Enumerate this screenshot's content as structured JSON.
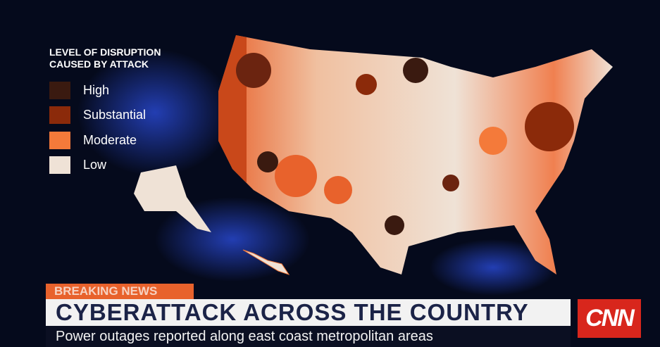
{
  "legend": {
    "title": "LEVEL OF DISRUPTION\nCAUSED BY ATTACK",
    "items": [
      {
        "label": "High"
      },
      {
        "label": "Substantial"
      },
      {
        "label": "Moderate"
      },
      {
        "label": "Low"
      }
    ]
  },
  "ticker": {
    "tag": "BREAKING NEWS",
    "headline": "CYBERATTACK ACROSS THE COUNTRY",
    "subheadline": "Power outages reported along east coast metropolitan areas",
    "logo": "CNN"
  }
}
